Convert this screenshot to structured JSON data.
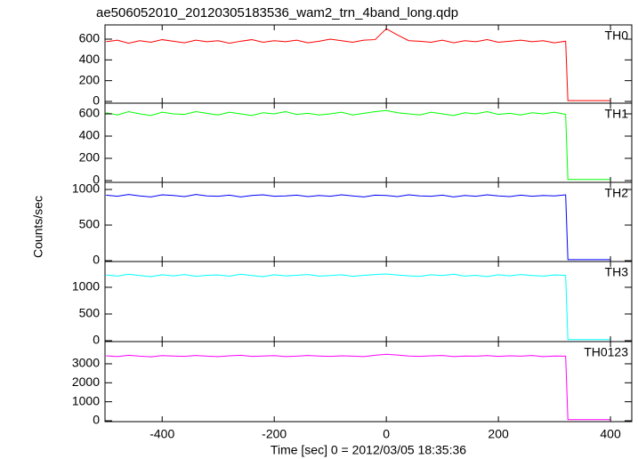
{
  "chart_data": {
    "type": "line",
    "title": "ae506052010_20120305183536_wam2_trn_4band_long.qdp",
    "xlabel": "Time [sec] 0 = 2012/03/05 18:35:36",
    "ylabel": "Counts/sec",
    "x": [
      -500,
      -480,
      -460,
      -440,
      -420,
      -400,
      -380,
      -360,
      -340,
      -320,
      -300,
      -280,
      -260,
      -240,
      -220,
      -200,
      -180,
      -160,
      -140,
      -120,
      -100,
      -80,
      -60,
      -40,
      -20,
      0,
      20,
      40,
      60,
      80,
      100,
      120,
      140,
      160,
      180,
      200,
      220,
      240,
      260,
      280,
      300,
      320,
      324,
      400
    ],
    "xlim": [
      -502,
      438
    ],
    "xticks": [
      -400,
      -200,
      0,
      200,
      400
    ],
    "series": [
      {
        "name": "TH0",
        "color": "#ff0000",
        "ylim": [
          -17,
          737
        ],
        "yticks": [
          0,
          200,
          400,
          600
        ],
        "values": [
          575,
          590,
          560,
          585,
          570,
          595,
          580,
          565,
          590,
          575,
          585,
          560,
          580,
          595,
          570,
          585,
          575,
          590,
          565,
          580,
          600,
          585,
          570,
          590,
          595,
          700,
          640,
          585,
          580,
          570,
          590,
          565,
          585,
          575,
          595,
          570,
          580,
          590,
          575,
          585,
          565,
          580,
          8,
          8
        ]
      },
      {
        "name": "TH1",
        "color": "#00ff00",
        "ylim": [
          -16,
          696
        ],
        "yticks": [
          0,
          200,
          400,
          600
        ],
        "values": [
          610,
          590,
          620,
          600,
          585,
          615,
          600,
          595,
          620,
          605,
          590,
          615,
          600,
          585,
          610,
          600,
          620,
          595,
          605,
          590,
          600,
          615,
          590,
          605,
          620,
          630,
          610,
          600,
          590,
          615,
          600,
          585,
          610,
          600,
          620,
          595,
          605,
          590,
          610,
          600,
          615,
          595,
          10,
          10
        ]
      },
      {
        "name": "TH2",
        "color": "#0000ff",
        "ylim": [
          -12,
          1100
        ],
        "yticks": [
          0,
          500,
          1000
        ],
        "values": [
          920,
          905,
          930,
          910,
          895,
          925,
          915,
          900,
          930,
          910,
          905,
          920,
          895,
          915,
          925,
          905,
          910,
          920,
          900,
          915,
          905,
          925,
          910,
          895,
          920,
          915,
          900,
          925,
          910,
          905,
          920,
          895,
          915,
          905,
          925,
          910,
          900,
          920,
          905,
          915,
          910,
          925,
          15,
          15
        ]
      },
      {
        "name": "TH3",
        "color": "#00ffff",
        "ylim": [
          -17,
          1483
        ],
        "yticks": [
          0,
          500,
          1000
        ],
        "values": [
          1230,
          1210,
          1245,
          1220,
          1200,
          1235,
          1215,
          1240,
          1205,
          1225,
          1230,
          1210,
          1245,
          1220,
          1200,
          1235,
          1215,
          1225,
          1240,
          1210,
          1220,
          1235,
          1205,
          1225,
          1240,
          1250,
          1230,
          1215,
          1205,
          1235,
          1220,
          1245,
          1210,
          1225,
          1200,
          1235,
          1215,
          1240,
          1220,
          1210,
          1230,
          1225,
          20,
          20
        ]
      },
      {
        "name": "TH0123",
        "color": "#ff00ff",
        "ylim": [
          -47,
          4170
        ],
        "yticks": [
          0,
          1000,
          2000,
          3000
        ],
        "values": [
          3420,
          3380,
          3450,
          3400,
          3370,
          3430,
          3410,
          3390,
          3440,
          3400,
          3380,
          3420,
          3450,
          3390,
          3410,
          3430,
          3380,
          3400,
          3440,
          3410,
          3390,
          3420,
          3400,
          3380,
          3450,
          3500,
          3460,
          3410,
          3390,
          3420,
          3440,
          3380,
          3410,
          3400,
          3430,
          3390,
          3420,
          3400,
          3440,
          3380,
          3410,
          3400,
          60,
          60
        ]
      }
    ]
  }
}
